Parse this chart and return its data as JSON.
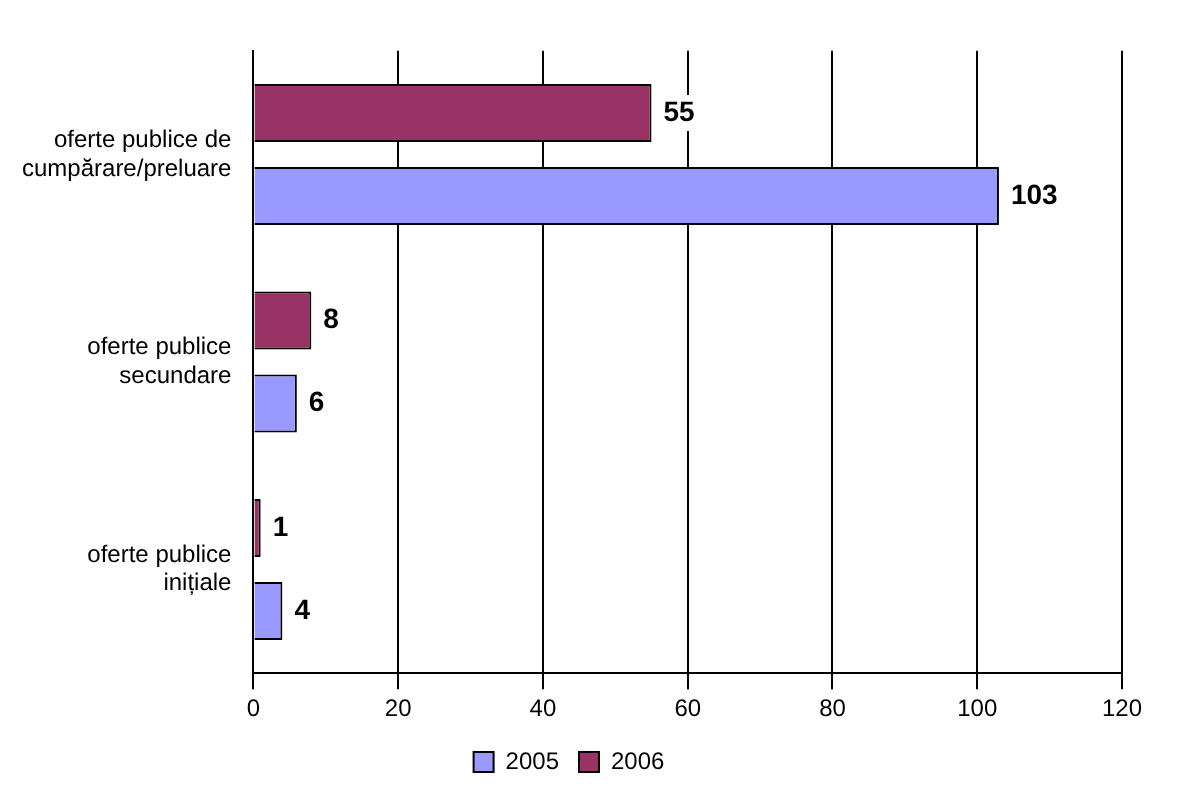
{
  "chart_data": {
    "type": "bar",
    "orientation": "horizontal",
    "categories": [
      "oferte publice de cumpărare/preluare",
      "oferte publice secundare",
      "oferte publice inițiale"
    ],
    "series": [
      {
        "name": "2005",
        "color": "#9999ff",
        "values": [
          103,
          6,
          4
        ]
      },
      {
        "name": "2006",
        "color": "#993366",
        "values": [
          55,
          8,
          1
        ]
      }
    ],
    "xlim": [
      0,
      120
    ],
    "xticks": [
      0,
      20,
      40,
      60,
      80,
      100,
      120
    ],
    "grid": "x",
    "legend": "bottom",
    "data_labels": true
  }
}
